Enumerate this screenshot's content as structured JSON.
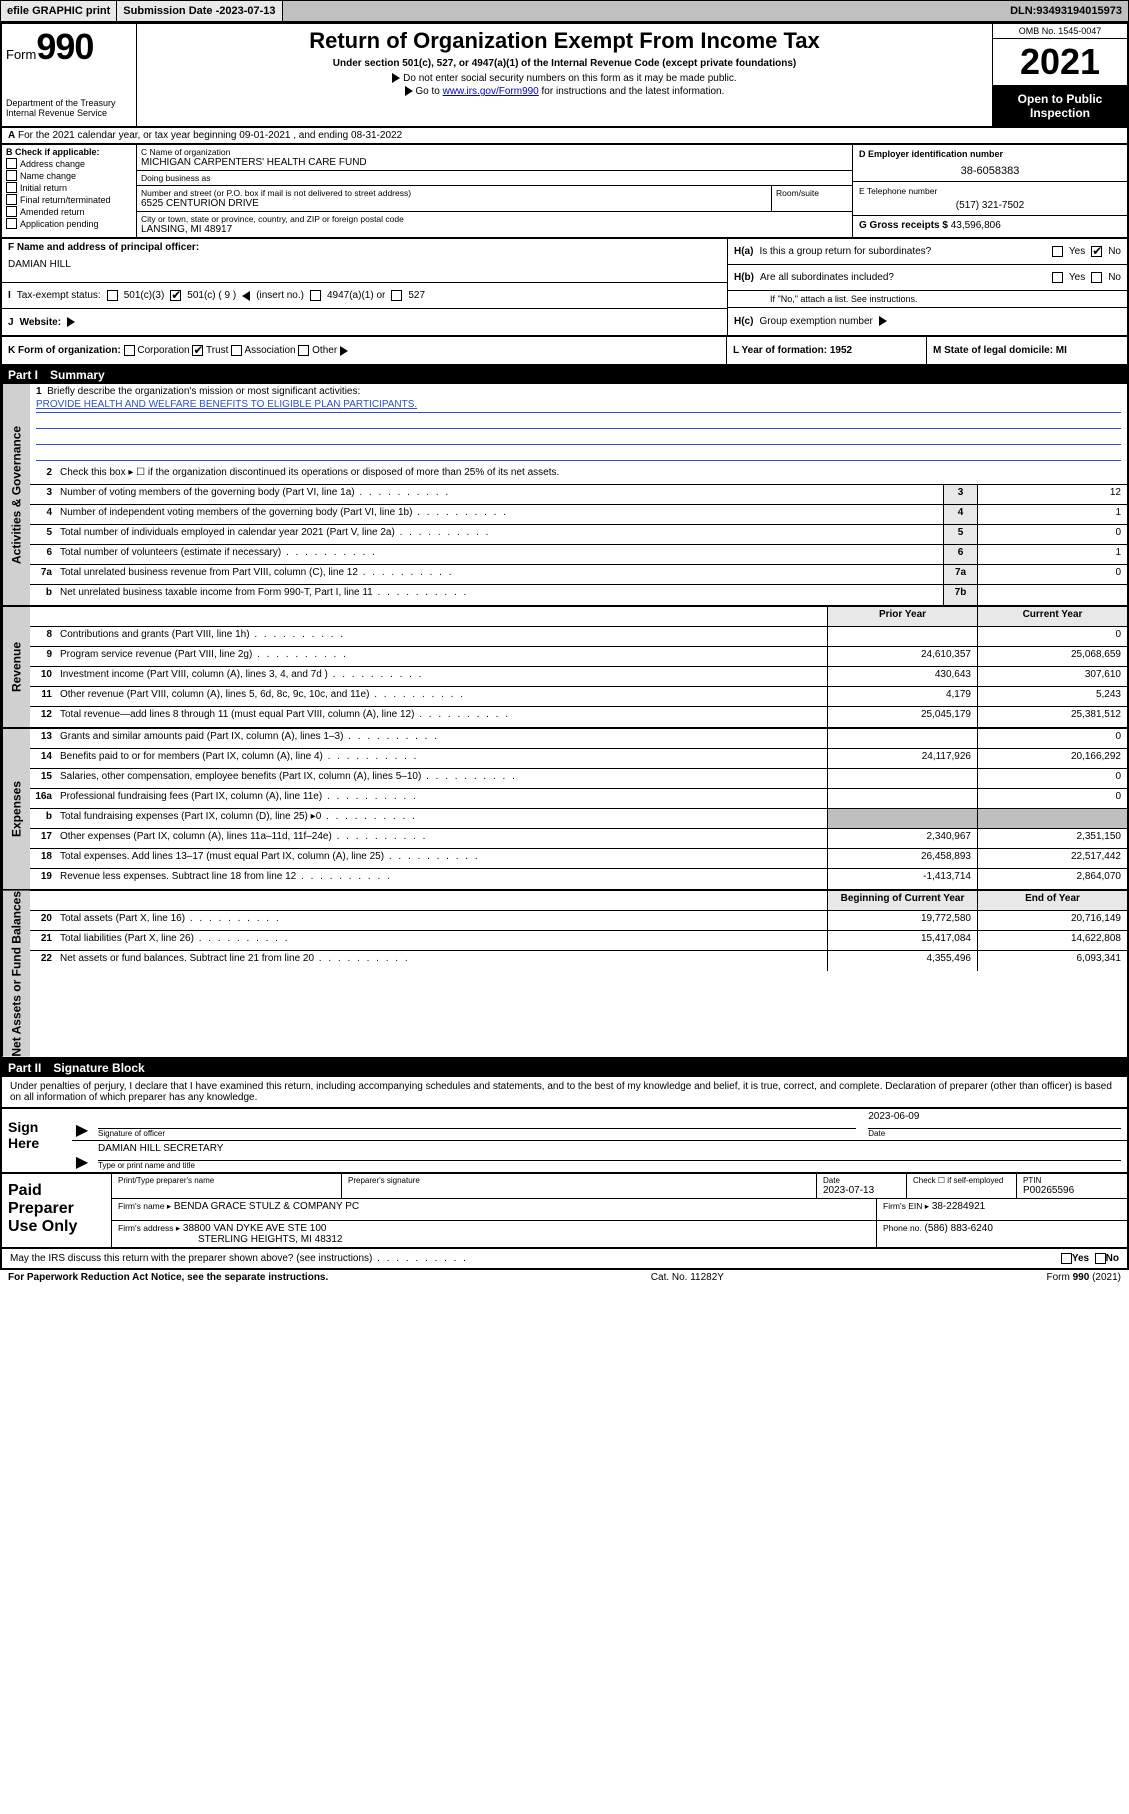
{
  "topbar": {
    "efile": "efile GRAPHIC print",
    "subdate_lbl": "Submission Date - ",
    "subdate": "2023-07-13",
    "dln_lbl": "DLN: ",
    "dln": "93493194015973"
  },
  "header": {
    "form_word": "Form",
    "form_num": "990",
    "dept": "Department of the Treasury",
    "irs": "Internal Revenue Service",
    "title": "Return of Organization Exempt From Income Tax",
    "sub": "Under section 501(c), 527, or 4947(a)(1) of the Internal Revenue Code (except private foundations)",
    "note1": "Do not enter social security numbers on this form as it may be made public.",
    "note2_pre": "Go to ",
    "note2_link": "www.irs.gov/Form990",
    "note2_post": " for instructions and the latest information.",
    "omb": "OMB No. 1545-0047",
    "year": "2021",
    "otpi": "Open to Public Inspection"
  },
  "A": {
    "line": "For the 2021 calendar year, or tax year beginning 09-01-2021  , and ending 08-31-2022"
  },
  "B": {
    "label": "Check if applicable:",
    "opts": [
      "Address change",
      "Name change",
      "Initial return",
      "Final return/terminated",
      "Amended return",
      "Application pending"
    ]
  },
  "C": {
    "name_lbl": "C Name of organization",
    "name": "MICHIGAN CARPENTERS' HEALTH CARE FUND",
    "dba_lbl": "Doing business as",
    "dba": "",
    "street_lbl": "Number and street (or P.O. box if mail is not delivered to street address)",
    "street": "6525 CENTURION DRIVE",
    "room_lbl": "Room/suite",
    "city_lbl": "City or town, state or province, country, and ZIP or foreign postal code",
    "city": "LANSING, MI  48917"
  },
  "D": {
    "lbl": "D Employer identification number",
    "val": "38-6058383"
  },
  "E": {
    "lbl": "E Telephone number",
    "val": "(517) 321-7502"
  },
  "G": {
    "lbl": "G Gross receipts $",
    "val": "43,596,806"
  },
  "F": {
    "lbl": "F  Name and address of principal officer:",
    "val": "DAMIAN HILL"
  },
  "H": {
    "a_lbl": "H(a)",
    "a_txt": "Is this a group return for subordinates?",
    "b_lbl": "H(b)",
    "b_txt": "Are all subordinates included?",
    "b_note": "If \"No,\" attach a list. See instructions.",
    "c_lbl": "H(c)",
    "c_txt": "Group exemption number",
    "yes": "Yes",
    "no": "No"
  },
  "I": {
    "lbl": "Tax-exempt status:",
    "o1": "501(c)(3)",
    "o2": "501(c) ( 9 )",
    "o2s": "(insert no.)",
    "o3": "4947(a)(1) or",
    "o4": "527"
  },
  "J": {
    "lbl": "Website:",
    "val": ""
  },
  "K": {
    "lbl": "K Form of organization:",
    "opts": [
      "Corporation",
      "Trust",
      "Association",
      "Other"
    ]
  },
  "L": {
    "lbl": "L Year of formation: 1952"
  },
  "M": {
    "lbl": "M State of legal domicile: MI"
  },
  "part1": {
    "title": "Part I",
    "subtitle": "Summary",
    "l1": "Briefly describe the organization's mission or most significant activities:",
    "mission": "PROVIDE HEALTH AND WELFARE BENEFITS TO ELIGIBLE PLAN PARTICIPANTS.",
    "l2": "Check this box ▸ ☐  if the organization discontinued its operations or disposed of more than 25% of its net assets.",
    "rows_simple": [
      {
        "n": "3",
        "t": "Number of voting members of the governing body (Part VI, line 1a)",
        "box": "3",
        "v": "12"
      },
      {
        "n": "4",
        "t": "Number of independent voting members of the governing body (Part VI, line 1b)",
        "box": "4",
        "v": "1"
      },
      {
        "n": "5",
        "t": "Total number of individuals employed in calendar year 2021 (Part V, line 2a)",
        "box": "5",
        "v": "0"
      },
      {
        "n": "6",
        "t": "Total number of volunteers (estimate if necessary)",
        "box": "6",
        "v": "1"
      },
      {
        "n": "7a",
        "t": "Total unrelated business revenue from Part VIII, column (C), line 12",
        "box": "7a",
        "v": "0"
      },
      {
        "n": "b",
        "t": "Net unrelated business taxable income from Form 990-T, Part I, line 11",
        "box": "7b",
        "v": ""
      }
    ],
    "col_hdr_prior": "Prior Year",
    "col_hdr_curr": "Current Year",
    "rev": [
      {
        "n": "8",
        "t": "Contributions and grants (Part VIII, line 1h)",
        "p": "",
        "c": "0"
      },
      {
        "n": "9",
        "t": "Program service revenue (Part VIII, line 2g)",
        "p": "24,610,357",
        "c": "25,068,659"
      },
      {
        "n": "10",
        "t": "Investment income (Part VIII, column (A), lines 3, 4, and 7d )",
        "p": "430,643",
        "c": "307,610"
      },
      {
        "n": "11",
        "t": "Other revenue (Part VIII, column (A), lines 5, 6d, 8c, 9c, 10c, and 11e)",
        "p": "4,179",
        "c": "5,243"
      },
      {
        "n": "12",
        "t": "Total revenue—add lines 8 through 11 (must equal Part VIII, column (A), line 12)",
        "p": "25,045,179",
        "c": "25,381,512"
      }
    ],
    "exp": [
      {
        "n": "13",
        "t": "Grants and similar amounts paid (Part IX, column (A), lines 1–3)",
        "p": "",
        "c": "0"
      },
      {
        "n": "14",
        "t": "Benefits paid to or for members (Part IX, column (A), line 4)",
        "p": "24,117,926",
        "c": "20,166,292"
      },
      {
        "n": "15",
        "t": "Salaries, other compensation, employee benefits (Part IX, column (A), lines 5–10)",
        "p": "",
        "c": "0"
      },
      {
        "n": "16a",
        "t": "Professional fundraising fees (Part IX, column (A), line 11e)",
        "p": "",
        "c": "0"
      },
      {
        "n": "b",
        "t": "Total fundraising expenses (Part IX, column (D), line 25) ▸0",
        "p": "shade",
        "c": "shade"
      },
      {
        "n": "17",
        "t": "Other expenses (Part IX, column (A), lines 11a–11d, 11f–24e)",
        "p": "2,340,967",
        "c": "2,351,150"
      },
      {
        "n": "18",
        "t": "Total expenses. Add lines 13–17 (must equal Part IX, column (A), line 25)",
        "p": "26,458,893",
        "c": "22,517,442"
      },
      {
        "n": "19",
        "t": "Revenue less expenses. Subtract line 18 from line 12",
        "p": "-1,413,714",
        "c": "2,864,070"
      }
    ],
    "col_hdr_boy": "Beginning of Current Year",
    "col_hdr_eoy": "End of Year",
    "net": [
      {
        "n": "20",
        "t": "Total assets (Part X, line 16)",
        "p": "19,772,580",
        "c": "20,716,149"
      },
      {
        "n": "21",
        "t": "Total liabilities (Part X, line 26)",
        "p": "15,417,084",
        "c": "14,622,808"
      },
      {
        "n": "22",
        "t": "Net assets or fund balances. Subtract line 21 from line 20",
        "p": "4,355,496",
        "c": "6,093,341"
      }
    ],
    "vtabs": {
      "gov": "Activities & Governance",
      "rev": "Revenue",
      "exp": "Expenses",
      "net": "Net Assets or Fund Balances"
    }
  },
  "part2": {
    "title": "Part II",
    "subtitle": "Signature Block",
    "decl": "Under penalties of perjury, I declare that I have examined this return, including accompanying schedules and statements, and to the best of my knowledge and belief, it is true, correct, and complete. Declaration of preparer (other than officer) is based on all information of which preparer has any knowledge.",
    "sign_here": "Sign Here",
    "sig_officer_lbl": "Signature of officer",
    "sig_date": "2023-06-09",
    "sig_date_lbl": "Date",
    "sig_name": "DAMIAN HILL SECRETARY",
    "sig_name_lbl": "Type or print name and title",
    "paid": "Paid Preparer Use Only",
    "prep_name_lbl": "Print/Type preparer's name",
    "prep_sig_lbl": "Preparer's signature",
    "prep_date_lbl": "Date",
    "prep_date": "2023-07-13",
    "prep_check_lbl": "Check ☐ if self-employed",
    "ptin_lbl": "PTIN",
    "ptin": "P00265596",
    "firm_name_lbl": "Firm's name   ▸",
    "firm_name": "BENDA GRACE STULZ & COMPANY PC",
    "firm_ein_lbl": "Firm's EIN ▸",
    "firm_ein": "38-2284921",
    "firm_addr_lbl": "Firm's address ▸",
    "firm_addr1": "38800 VAN DYKE AVE STE 100",
    "firm_addr2": "STERLING HEIGHTS, MI  48312",
    "phone_lbl": "Phone no.",
    "phone": "(586) 883-6240",
    "may_irs": "May the IRS discuss this return with the preparer shown above? (see instructions)",
    "yes": "Yes",
    "no": "No"
  },
  "footer": {
    "pra": "For Paperwork Reduction Act Notice, see the separate instructions.",
    "cat": "Cat. No. 11282Y",
    "form": "Form 990 (2021)"
  }
}
